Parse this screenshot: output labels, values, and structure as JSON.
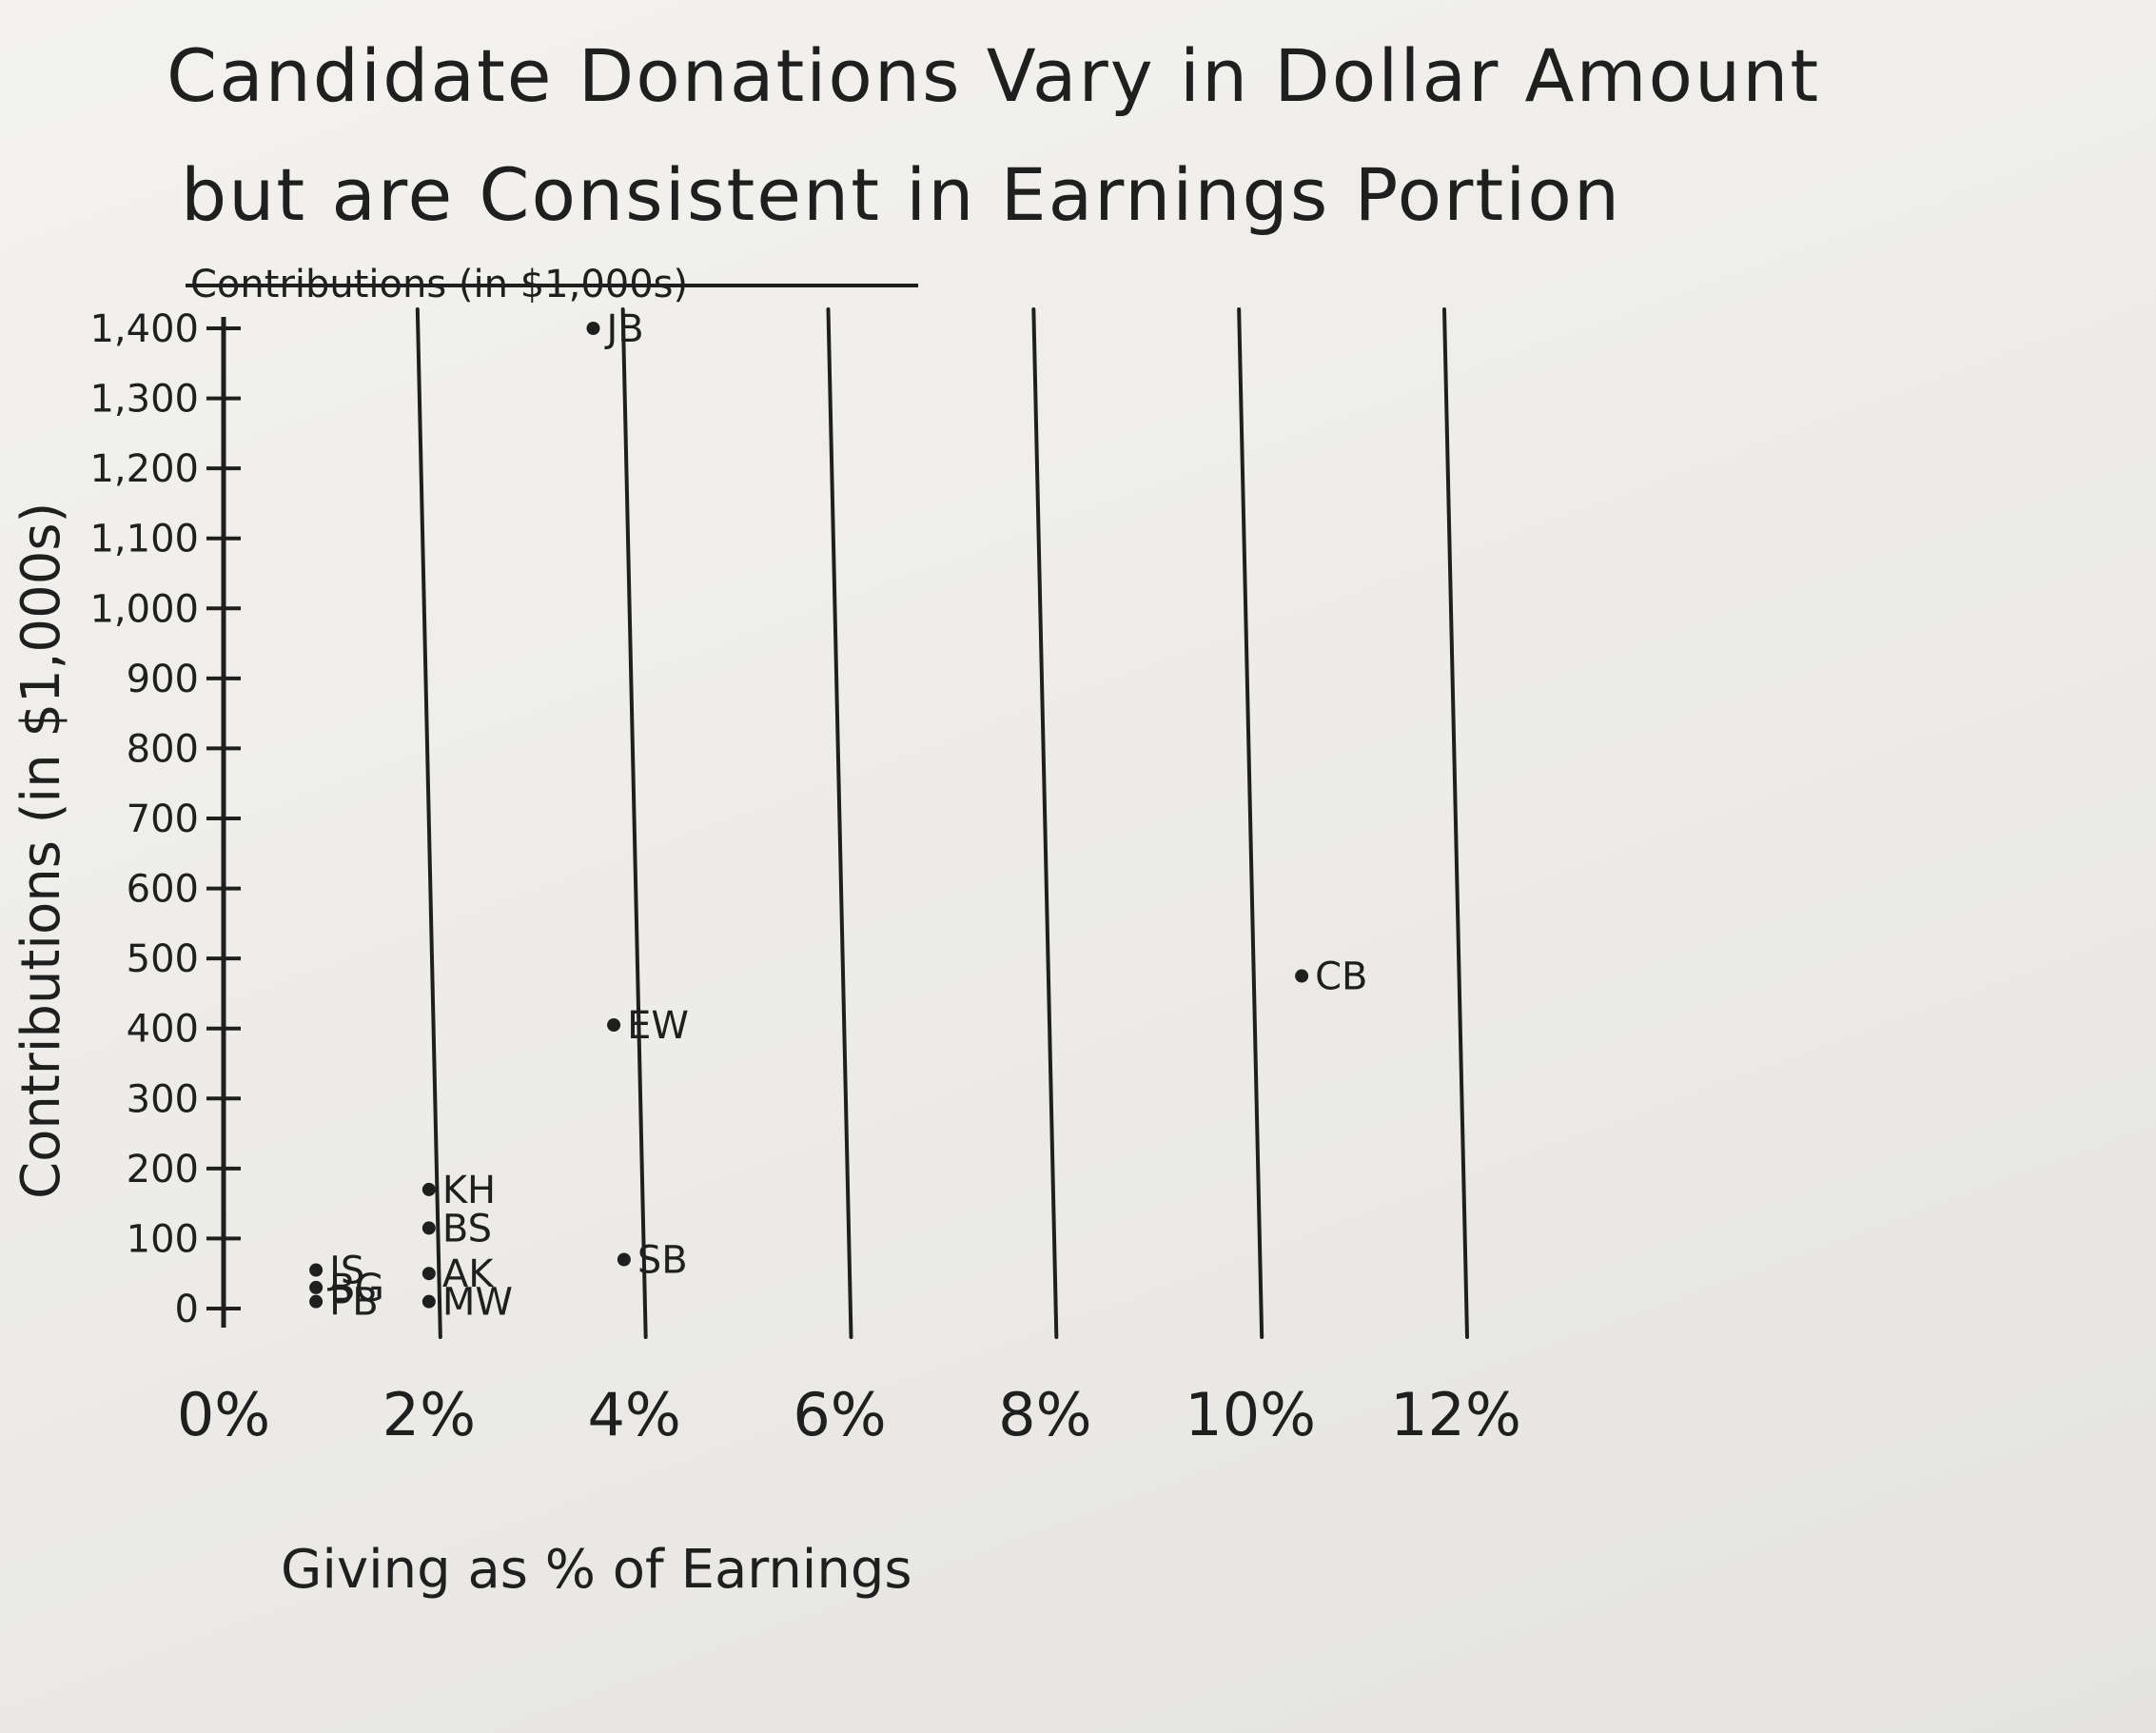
{
  "chart_data": {
    "type": "scatter",
    "title": "Candidate Donations Vary in Dollar Amount but are Consistent in Earnings Portion",
    "title_lines": [
      "Candidate Donations Vary in Dollar Amount",
      "but are Consistent in Earnings Portion"
    ],
    "struck_label": "Contributions (in $1,000s)",
    "xlabel": "Giving as % of Earnings",
    "ylabel": "Contributions (in $1,000s)",
    "x_ticks": [
      "0%",
      "2%",
      "4%",
      "6%",
      "8%",
      "10%",
      "12%"
    ],
    "x_tick_values": [
      0,
      2,
      4,
      6,
      8,
      10,
      12
    ],
    "y_ticks": [
      "0",
      "100",
      "200",
      "300",
      "400",
      "500",
      "600",
      "700",
      "800",
      "900",
      "1,000",
      "1,100",
      "1,200",
      "1,300",
      "1,400"
    ],
    "y_tick_values": [
      0,
      100,
      200,
      300,
      400,
      500,
      600,
      700,
      800,
      900,
      1000,
      1100,
      1200,
      1300,
      1400
    ],
    "xlim": [
      0,
      12
    ],
    "ylim": [
      0,
      1400
    ],
    "grid": "vertical lines at each x tick",
    "points": [
      {
        "label": "JB",
        "x": 3.6,
        "y": 1400
      },
      {
        "label": "EW",
        "x": 3.8,
        "y": 405
      },
      {
        "label": "CB",
        "x": 10.5,
        "y": 475
      },
      {
        "label": "KH",
        "x": 2.0,
        "y": 170
      },
      {
        "label": "BS",
        "x": 2.0,
        "y": 115
      },
      {
        "label": "SB",
        "x": 3.9,
        "y": 70
      },
      {
        "label": "AK",
        "x": 2.0,
        "y": 50
      },
      {
        "label": "MW",
        "x": 2.0,
        "y": 10
      },
      {
        "label": "JS",
        "x": 0.9,
        "y": 55
      },
      {
        "label": "BG",
        "x": 0.9,
        "y": 30
      },
      {
        "label": "PB",
        "x": 0.9,
        "y": 10
      }
    ]
  }
}
